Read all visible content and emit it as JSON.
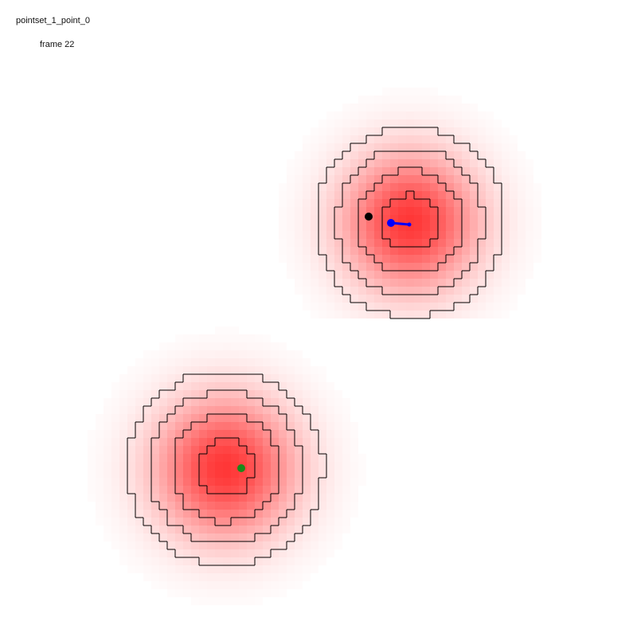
{
  "title": "pointset_1_point_0",
  "frame_label": "frame 22",
  "colors": {
    "heat": "#ff3b3b",
    "contour": "#000000",
    "tracker_point": "#0000ff",
    "reference_point": "#000000",
    "target_point": "#1a8a1a"
  },
  "fields": [
    {
      "name": "upper-right-blob"
    },
    {
      "name": "lower-left-blob"
    }
  ],
  "markers": [
    {
      "name": "reference-point",
      "color_key": "reference_point"
    },
    {
      "name": "tracker-point",
      "color_key": "tracker_point"
    },
    {
      "name": "target-point",
      "color_key": "target_point"
    }
  ]
}
